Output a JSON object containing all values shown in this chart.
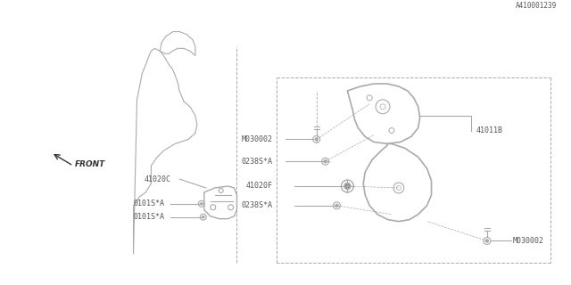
{
  "bg_color": "#ffffff",
  "line_color": "#aaaaaa",
  "text_color": "#555555",
  "title_color": "#000000",
  "figsize": [
    6.4,
    3.2
  ],
  "dpi": 100,
  "diagram_id": "A410001239",
  "labels": {
    "front_arrow": "FRONT",
    "part_41020C": "41020C",
    "part_0101S_A_1": "0101S*A",
    "part_0101S_A_2": "0101S*A",
    "part_41011B": "41011B",
    "part_M030002_1": "M030002",
    "part_0238S_A_1": "0238S*A",
    "part_41020F": "41020F",
    "part_0238S_A_2": "0238S*A",
    "part_M030002_2": "M030002"
  }
}
